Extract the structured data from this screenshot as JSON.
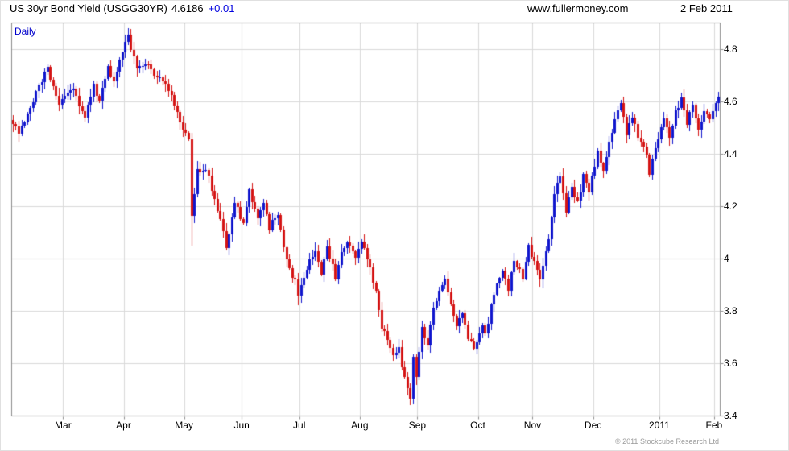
{
  "header": {
    "title": "US 30yr Bond Yield (USGG30YR)",
    "last_value": "4.6186",
    "change": "+0.01",
    "website": "www.fullermoney.com",
    "date": "2 Feb 2011"
  },
  "chart": {
    "mode_label": "Daily",
    "copyright": "© 2011 Stockcube Research Ltd",
    "colors": {
      "up": "#1016cd",
      "down": "#d41414",
      "grid": "#d9d9d9",
      "frame": "#8c8c8c",
      "tick": "#8c8c8c",
      "mode_label_color": "#0000cc",
      "change_color": "#0000e0"
    }
  },
  "chart_data": {
    "type": "candlestick",
    "title": "US 30yr Bond Yield (USGG30YR), Daily",
    "period_shown": "Feb 2010 - 2 Feb 2011",
    "last_close": 4.6186,
    "change": 0.01,
    "ylim": [
      3.4,
      4.9
    ],
    "grid": true,
    "y_axis_side": "right",
    "y_ticks": [
      {
        "value": 3.4,
        "label": "3.4"
      },
      {
        "value": 3.6,
        "label": "3.6"
      },
      {
        "value": 3.8,
        "label": "3.8"
      },
      {
        "value": 4.0,
        "label": "4"
      },
      {
        "value": 4.2,
        "label": "4.2"
      },
      {
        "value": 4.4,
        "label": "4.4"
      },
      {
        "value": 4.6,
        "label": "4.6"
      },
      {
        "value": 4.8,
        "label": "4.8"
      }
    ],
    "x_ticks": [
      {
        "label": "Mar",
        "index": 18
      },
      {
        "label": "Apr",
        "index": 39
      },
      {
        "label": "May",
        "index": 60
      },
      {
        "label": "Jun",
        "index": 80
      },
      {
        "label": "Jul",
        "index": 100
      },
      {
        "label": "Aug",
        "index": 121
      },
      {
        "label": "Sep",
        "index": 141
      },
      {
        "label": "Oct",
        "index": 162
      },
      {
        "label": "Nov",
        "index": 181
      },
      {
        "label": "Dec",
        "index": 202
      },
      {
        "label": "2011",
        "index": 225
      },
      {
        "label": "Feb",
        "index": 244
      }
    ],
    "num_bars": 246,
    "waypoints": [
      [
        0,
        4.52
      ],
      [
        2,
        4.47
      ],
      [
        5,
        4.55
      ],
      [
        9,
        4.66
      ],
      [
        12,
        4.73
      ],
      [
        14,
        4.65
      ],
      [
        16,
        4.6
      ],
      [
        19,
        4.63
      ],
      [
        21,
        4.66
      ],
      [
        23,
        4.59
      ],
      [
        25,
        4.55
      ],
      [
        28,
        4.66
      ],
      [
        30,
        4.6
      ],
      [
        33,
        4.73
      ],
      [
        35,
        4.68
      ],
      [
        38,
        4.79
      ],
      [
        40,
        4.85
      ],
      [
        43,
        4.72
      ],
      [
        47,
        4.74
      ],
      [
        50,
        4.69
      ],
      [
        53,
        4.66
      ],
      [
        57,
        4.56
      ],
      [
        60,
        4.47
      ],
      [
        61,
        4.45
      ],
      [
        62,
        4.17
      ],
      [
        64,
        4.33
      ],
      [
        67,
        4.35
      ],
      [
        70,
        4.22
      ],
      [
        72,
        4.14
      ],
      [
        74,
        4.05
      ],
      [
        77,
        4.21
      ],
      [
        80,
        4.13
      ],
      [
        82,
        4.26
      ],
      [
        85,
        4.16
      ],
      [
        87,
        4.22
      ],
      [
        89,
        4.12
      ],
      [
        92,
        4.17
      ],
      [
        95,
        3.99
      ],
      [
        98,
        3.91
      ],
      [
        99,
        3.86
      ],
      [
        102,
        3.96
      ],
      [
        105,
        4.04
      ],
      [
        107,
        3.94
      ],
      [
        109,
        4.05
      ],
      [
        112,
        3.93
      ],
      [
        114,
        4.03
      ],
      [
        117,
        4.06
      ],
      [
        119,
        3.99
      ],
      [
        121,
        4.06
      ],
      [
        124,
        3.96
      ],
      [
        126,
        3.87
      ],
      [
        128,
        3.74
      ],
      [
        130,
        3.7
      ],
      [
        132,
        3.62
      ],
      [
        134,
        3.67
      ],
      [
        135,
        3.57
      ],
      [
        137,
        3.51
      ],
      [
        138,
        3.47
      ],
      [
        139,
        3.62
      ],
      [
        140,
        3.56
      ],
      [
        142,
        3.73
      ],
      [
        144,
        3.68
      ],
      [
        146,
        3.81
      ],
      [
        148,
        3.88
      ],
      [
        150,
        3.93
      ],
      [
        152,
        3.82
      ],
      [
        154,
        3.74
      ],
      [
        156,
        3.8
      ],
      [
        158,
        3.69
      ],
      [
        160,
        3.66
      ],
      [
        163,
        3.75
      ],
      [
        164,
        3.71
      ],
      [
        167,
        3.87
      ],
      [
        170,
        3.96
      ],
      [
        172,
        3.88
      ],
      [
        174,
        3.99
      ],
      [
        177,
        3.93
      ],
      [
        179,
        4.04
      ],
      [
        181,
        3.98
      ],
      [
        183,
        3.91
      ],
      [
        186,
        4.07
      ],
      [
        188,
        4.25
      ],
      [
        190,
        4.31
      ],
      [
        192,
        4.18
      ],
      [
        194,
        4.26
      ],
      [
        196,
        4.21
      ],
      [
        198,
        4.31
      ],
      [
        200,
        4.25
      ],
      [
        203,
        4.41
      ],
      [
        205,
        4.34
      ],
      [
        207,
        4.45
      ],
      [
        209,
        4.52
      ],
      [
        211,
        4.59
      ],
      [
        213,
        4.47
      ],
      [
        215,
        4.54
      ],
      [
        217,
        4.46
      ],
      [
        220,
        4.39
      ],
      [
        221,
        4.33
      ],
      [
        224,
        4.46
      ],
      [
        226,
        4.53
      ],
      [
        228,
        4.47
      ],
      [
        230,
        4.56
      ],
      [
        232,
        4.61
      ],
      [
        234,
        4.52
      ],
      [
        236,
        4.59
      ],
      [
        238,
        4.49
      ],
      [
        240,
        4.56
      ],
      [
        242,
        4.53
      ],
      [
        244,
        4.6
      ],
      [
        245,
        4.6186
      ]
    ],
    "special_highs": [
      [
        12,
        4.74
      ],
      [
        40,
        4.86
      ],
      [
        190,
        4.32
      ],
      [
        211,
        4.6
      ]
    ],
    "special_lows": [
      [
        62,
        4.05
      ],
      [
        74,
        4.03
      ],
      [
        99,
        3.82
      ],
      [
        138,
        3.46
      ]
    ]
  }
}
